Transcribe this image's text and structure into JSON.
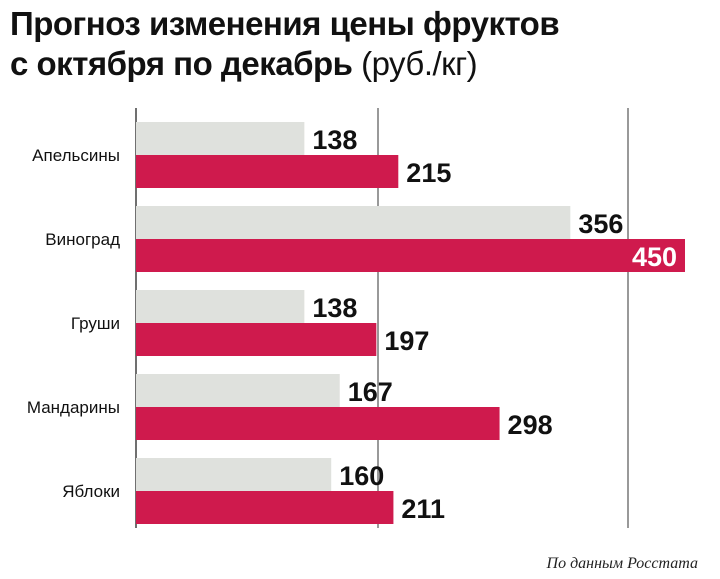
{
  "title": {
    "line1": "Прогноз изменения цены фруктов",
    "line2": "с октября по декабрь",
    "unit": "(руб./кг)"
  },
  "source": "По данным Росстата",
  "colors": {
    "oct": "#dfe1dd",
    "dec": "#cf1a4d",
    "grid": "#333333"
  },
  "chart_data": {
    "type": "bar",
    "orientation": "horizontal",
    "categories": [
      "Апельсины",
      "Виноград",
      "Груши",
      "Мандарины",
      "Яблоки"
    ],
    "series": [
      {
        "values": [
          138,
          356,
          138,
          167,
          160
        ]
      },
      {
        "values": [
          215,
          450,
          197,
          298,
          211
        ]
      }
    ],
    "xlim": [
      0,
      450
    ],
    "grid": true,
    "legend": "none"
  }
}
